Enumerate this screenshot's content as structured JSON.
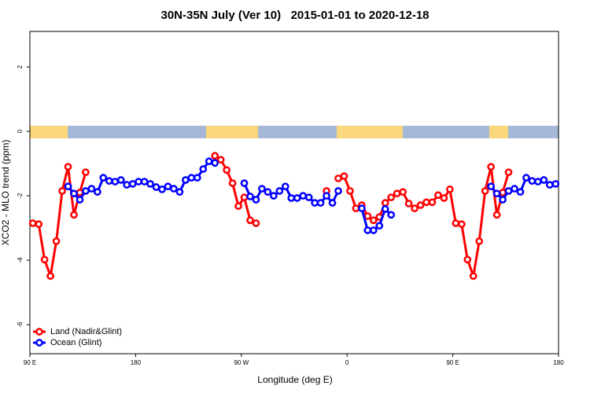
{
  "chart_data": {
    "type": "line",
    "title": "30N-35N July (Ver 10)   2015-01-01 to 2020-12-18",
    "xlabel": "Longitude (deg E)",
    "ylabel": "XCO2 - MLO trend (ppm)",
    "xlim": [
      90,
      540
    ],
    "ylim": [
      -6.9,
      3.1
    ],
    "xticks": [
      {
        "value": 90,
        "label": "90 E"
      },
      180,
      {
        "value": 270,
        "label": "90 W"
      },
      {
        "value": 360,
        "label": "0"
      },
      {
        "value": 450,
        "label": "90 E"
      },
      {
        "value": 540,
        "label": "180"
      }
    ],
    "yticks": [
      -6,
      -4,
      -2,
      0,
      2
    ],
    "legend": "bottomleft",
    "series": [
      {
        "name": "Land (Nadir&Glint)",
        "color": "#ff0000",
        "x": [
          92.5,
          97.5,
          102.5,
          107.5,
          112.5,
          117.5,
          122.5,
          127.5,
          132.5,
          137.5,
          142.5,
          247.5,
          252.5,
          257.5,
          262.5,
          267.5,
          272.5,
          277.5,
          282.5,
          287.5,
          342.5,
          347.5,
          352.5,
          357.5,
          362.5,
          367.5,
          372.5,
          377.5,
          382.5,
          387.5,
          392.5,
          397.5,
          402.5,
          407.5,
          412.5,
          417.5,
          422.5,
          427.5,
          432.5,
          437.5,
          442.5,
          447.5,
          452.5,
          457.5,
          462.5,
          467.5,
          472.5,
          477.5,
          482.5,
          487.5,
          492.5,
          497.5
        ],
        "values": [
          -2.85,
          -2.88,
          -3.98,
          -4.49,
          -3.41,
          -1.85,
          -1.1,
          -2.59,
          -1.9,
          -1.27,
          null,
          -0.76,
          -0.88,
          -1.2,
          -1.61,
          -2.32,
          -2.05,
          -2.76,
          -2.85,
          null,
          -1.85,
          null,
          -1.46,
          -1.39,
          -1.85,
          -2.39,
          -2.29,
          -2.63,
          -2.76,
          -2.66,
          -2.22,
          -2.05,
          -1.93,
          -1.88,
          -2.24,
          -2.39,
          -2.29,
          -2.2,
          -2.2,
          -1.98,
          -2.07,
          -1.8,
          -2.85,
          -2.88,
          -3.98,
          -4.49,
          -3.41,
          -1.85,
          -1.1,
          -2.59,
          -1.9,
          -1.27
        ]
      },
      {
        "name": "Ocean (Glint)",
        "color": "#0000ff",
        "x": [
          122.5,
          127.5,
          132.5,
          137.5,
          142.5,
          147.5,
          152.5,
          157.5,
          162.5,
          167.5,
          172.5,
          177.5,
          182.5,
          187.5,
          192.5,
          197.5,
          202.5,
          207.5,
          212.5,
          217.5,
          222.5,
          227.5,
          232.5,
          237.5,
          242.5,
          247.5,
          252.5,
          272.5,
          277.5,
          282.5,
          287.5,
          292.5,
          297.5,
          302.5,
          307.5,
          312.5,
          317.5,
          322.5,
          327.5,
          332.5,
          337.5,
          342.5,
          347.5,
          352.5,
          357.5,
          372.5,
          377.5,
          382.5,
          387.5,
          392.5,
          397.5,
          402.5,
          482.5,
          487.5,
          492.5,
          497.5,
          502.5,
          507.5,
          512.5,
          517.5,
          522.5,
          527.5,
          532.5,
          537.5
        ],
        "values": [
          -1.71,
          -1.93,
          -2.12,
          -1.85,
          -1.78,
          -1.88,
          -1.44,
          -1.54,
          -1.56,
          -1.51,
          -1.66,
          -1.63,
          -1.56,
          -1.56,
          -1.63,
          -1.73,
          -1.8,
          -1.71,
          -1.78,
          -1.88,
          -1.51,
          -1.44,
          -1.44,
          -1.17,
          -0.93,
          -0.98,
          null,
          -1.61,
          -2.02,
          -2.12,
          -1.78,
          -1.88,
          -2.0,
          -1.85,
          -1.71,
          -2.07,
          -2.07,
          -2.0,
          -2.05,
          -2.22,
          -2.22,
          -2.0,
          -2.22,
          -1.85,
          null,
          -2.39,
          -3.07,
          -3.07,
          -2.93,
          -2.41,
          -2.59,
          null,
          -1.71,
          -1.93,
          -2.12,
          -1.85,
          -1.78,
          -1.88,
          -1.44,
          -1.54,
          -1.56,
          -1.51,
          -1.66,
          -1.63
        ]
      }
    ]
  }
}
